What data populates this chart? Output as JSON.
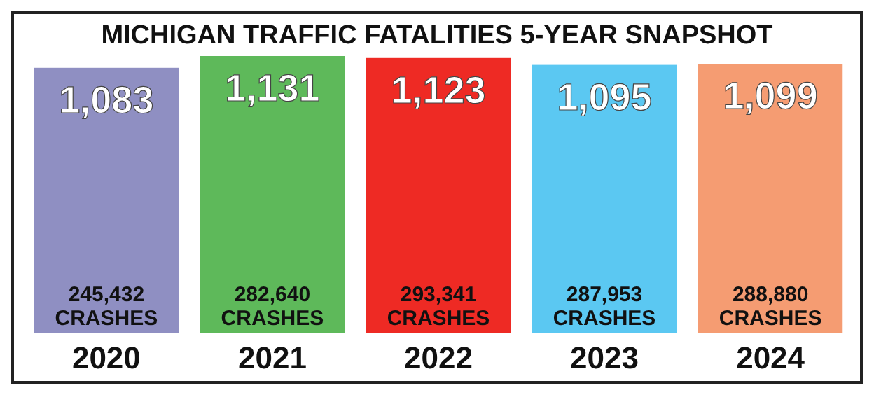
{
  "chart_data": {
    "type": "bar",
    "title": "MICHIGAN TRAFFIC FATALITIES 5-YEAR SNAPSHOT",
    "categories": [
      "2020",
      "2021",
      "2022",
      "2023",
      "2024"
    ],
    "values": [
      1083,
      1131,
      1123,
      1095,
      1099
    ],
    "value_labels": [
      "1,083",
      "1,131",
      "1,123",
      "1,095",
      "1,099"
    ],
    "colors": [
      "#8f8fc2",
      "#5eb95a",
      "#ee2a24",
      "#5bc8f2",
      "#f59c72"
    ],
    "annotations": [
      "245,432\nCRASHES",
      "282,640\nCRASHES",
      "293,341\nCRASHES",
      "287,953\nCRASHES",
      "288,880\nCRASHES"
    ]
  }
}
